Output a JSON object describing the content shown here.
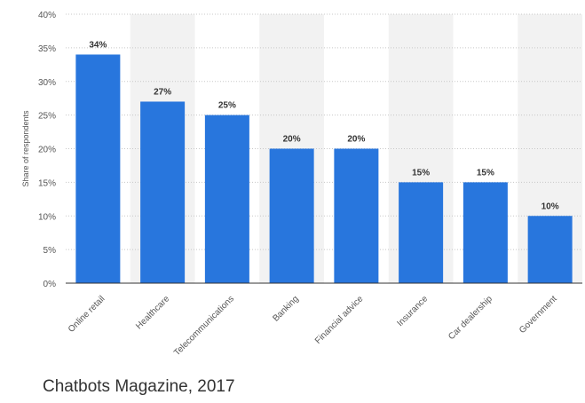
{
  "chart_data": {
    "type": "bar",
    "categories": [
      "Online retail",
      "Healthcare",
      "Telecommunications",
      "Banking",
      "Financial advice",
      "Insurance",
      "Car dealership",
      "Government"
    ],
    "values": [
      34,
      27,
      25,
      20,
      20,
      15,
      15,
      10
    ],
    "value_labels": [
      "34%",
      "27%",
      "25%",
      "20%",
      "20%",
      "15%",
      "15%",
      "10%"
    ],
    "ylabel": "Share of respondents",
    "ylim": [
      0,
      40
    ],
    "yticks": [
      0,
      5,
      10,
      15,
      20,
      25,
      30,
      35,
      40
    ],
    "ytick_labels": [
      "0%",
      "5%",
      "10%",
      "15%",
      "20%",
      "25%",
      "30%",
      "35%",
      "40%"
    ],
    "grid": true,
    "bar_color": "#2876dd",
    "band_color": "#f2f2f2"
  },
  "source": "Chatbots Magazine, 2017"
}
